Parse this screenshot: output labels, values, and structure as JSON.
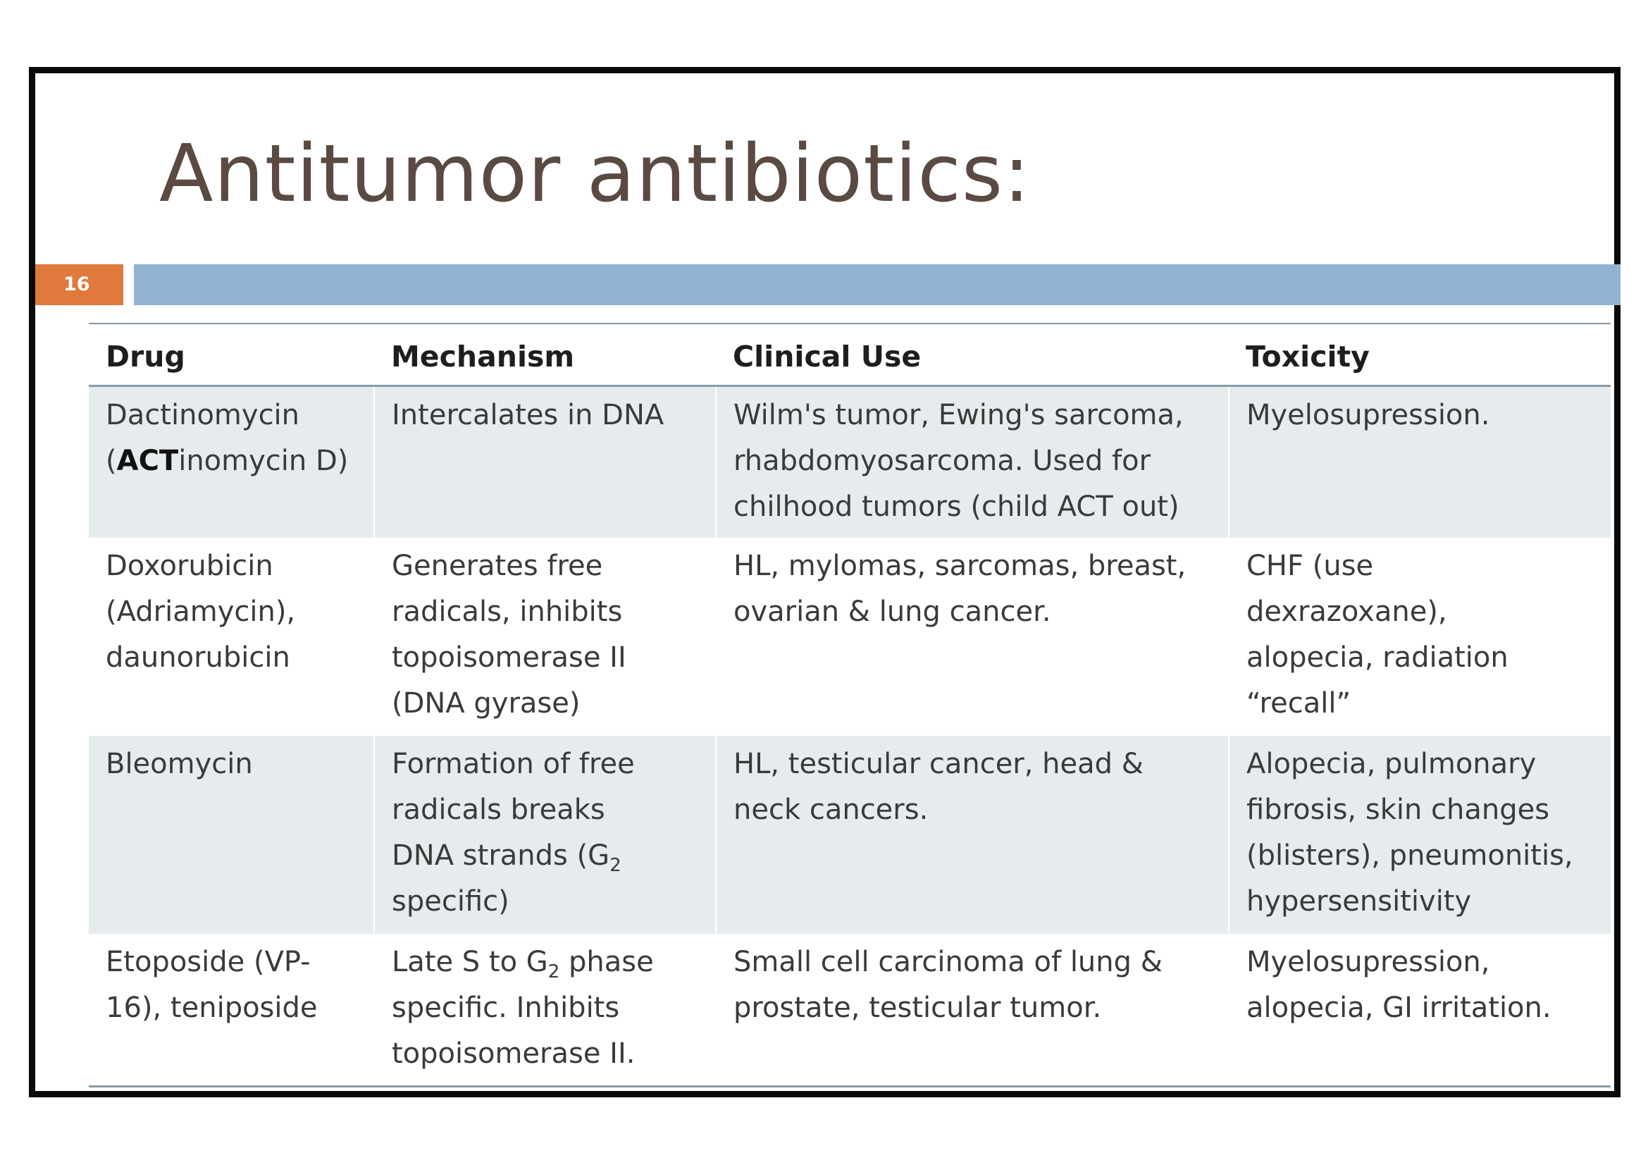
{
  "slide": {
    "title": "Antitumor antibiotics:",
    "number": "16",
    "colors": {
      "title_text": "#5a4a42",
      "slide_number_bg": "#e07a3c",
      "title_bar": "#92b4d2",
      "shaded_row": "#e6ecee",
      "rule": "#8a9aa6"
    }
  },
  "table": {
    "headers": [
      "Drug",
      "Mechanism",
      "Clinical Use",
      "Toxicity"
    ],
    "rows": [
      {
        "drug": {
          "line1": "Dactinomycin",
          "line2_prefix": "(",
          "line2_bold": "ACT",
          "line2_rest": "inomycin D)"
        },
        "mechanism": [
          "Intercalates in DNA"
        ],
        "clinical_use": [
          "Wilm's tumor, Ewing's sarcoma,",
          "rhabdomyosarcoma. Used for",
          "chilhood tumors (child ACT out)"
        ],
        "toxicity": [
          "Myelosupression."
        ]
      },
      {
        "drug": [
          "Doxorubicin",
          "(Adriamycin),",
          "daunorubicin"
        ],
        "mechanism": [
          "Generates free",
          "radicals, inhibits",
          "topoisomerase II",
          "(DNA gyrase)"
        ],
        "clinical_use": [
          "HL, mylomas, sarcomas, breast,",
          "ovarian & lung cancer."
        ],
        "toxicity": [
          "CHF (use",
          "dexrazoxane),",
          "alopecia, radiation",
          "“recall”"
        ]
      },
      {
        "drug": [
          "Bleomycin"
        ],
        "mechanism": {
          "line1": "Formation of free",
          "line2": "radicals breaks",
          "line3_text": "DNA strands (G",
          "line3_sub": "2",
          "line4": "specific)"
        },
        "clinical_use": [
          "HL, testicular cancer, head &",
          "neck cancers."
        ],
        "toxicity": [
          "Alopecia, pulmonary",
          "fibrosis, skin changes",
          "(blisters), pneumonitis,",
          "hypersensitivity"
        ]
      },
      {
        "drug": [
          "Etoposide (VP-",
          "16), teniposide"
        ],
        "mechanism": {
          "line1_text": "Late S to G",
          "line1_sub": "2",
          "line1_rest": " phase",
          "line2": "specific. Inhibits",
          "line3": "topoisomerase II."
        },
        "clinical_use": [
          "Small cell carcinoma of lung &",
          "prostate, testicular tumor."
        ],
        "toxicity": [
          "Myelosupression,",
          "alopecia, GI irritation."
        ]
      }
    ]
  }
}
